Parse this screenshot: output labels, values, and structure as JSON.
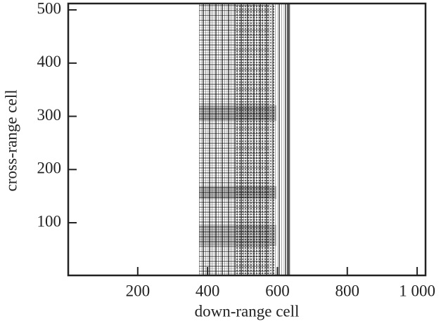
{
  "chart_data": {
    "type": "image",
    "xlabel": "down-range cell",
    "ylabel": "cross-range cell",
    "xlim": [
      1,
      1024
    ],
    "ylim": [
      1,
      512
    ],
    "xticks": [
      200,
      400,
      600,
      800,
      {
        "value": 1000,
        "label": "1 000"
      }
    ],
    "yticks": [
      100,
      200,
      300,
      400,
      500
    ]
  }
}
